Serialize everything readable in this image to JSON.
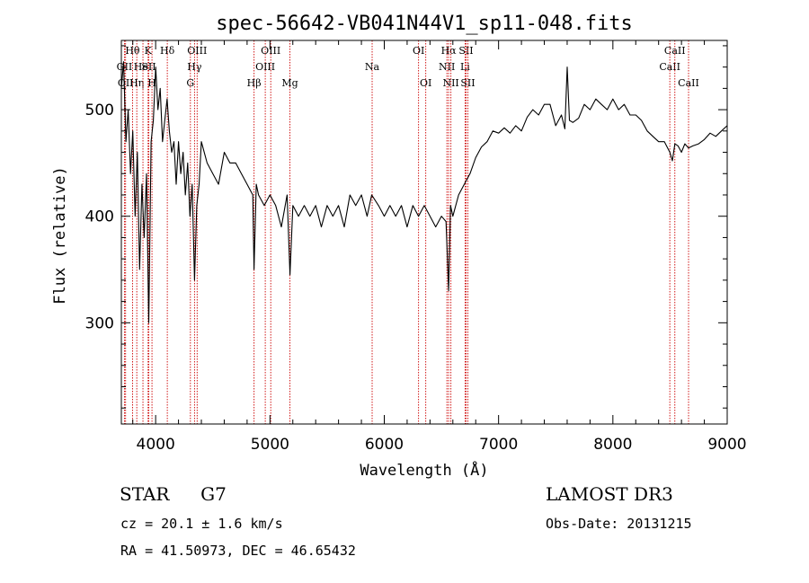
{
  "chart_data": {
    "type": "line",
    "title": "spec-56642-VB041N44V1_sp11-048.fits",
    "xlabel": "Wavelength (Å)",
    "ylabel": "Flux (relative)",
    "xlim": [
      3700,
      9000
    ],
    "ylim": [
      205,
      565
    ],
    "x_ticks": [
      4000,
      5000,
      6000,
      7000,
      8000,
      9000
    ],
    "y_ticks": [
      300,
      400,
      500
    ],
    "grid": false,
    "series": [
      {
        "name": "flux",
        "color": "#000000",
        "x": [
          3700,
          3720,
          3740,
          3760,
          3780,
          3800,
          3820,
          3840,
          3860,
          3880,
          3900,
          3920,
          3940,
          3960,
          3980,
          4000,
          4020,
          4040,
          4060,
          4080,
          4100,
          4120,
          4140,
          4160,
          4180,
          4200,
          4220,
          4240,
          4260,
          4280,
          4300,
          4320,
          4340,
          4360,
          4380,
          4400,
          4450,
          4500,
          4550,
          4600,
          4650,
          4700,
          4750,
          4800,
          4850,
          4861,
          4880,
          4900,
          4950,
          5000,
          5050,
          5100,
          5150,
          5175,
          5200,
          5250,
          5300,
          5350,
          5400,
          5450,
          5500,
          5550,
          5600,
          5650,
          5700,
          5750,
          5800,
          5850,
          5890,
          5950,
          6000,
          6050,
          6100,
          6150,
          6200,
          6250,
          6300,
          6350,
          6400,
          6450,
          6500,
          6540,
          6563,
          6580,
          6600,
          6650,
          6700,
          6750,
          6800,
          6850,
          6900,
          6950,
          7000,
          7050,
          7100,
          7150,
          7200,
          7250,
          7300,
          7350,
          7400,
          7450,
          7500,
          7550,
          7580,
          7600,
          7620,
          7650,
          7700,
          7750,
          7800,
          7850,
          7900,
          7950,
          8000,
          8050,
          8100,
          8150,
          8200,
          8250,
          8300,
          8350,
          8400,
          8450,
          8498,
          8520,
          8542,
          8570,
          8600,
          8630,
          8662,
          8700,
          8750,
          8800,
          8850,
          8900,
          8950,
          9000
        ],
        "values": [
          520,
          545,
          470,
          500,
          440,
          480,
          400,
          460,
          350,
          430,
          380,
          440,
          300,
          470,
          490,
          540,
          500,
          520,
          470,
          490,
          510,
          480,
          460,
          470,
          430,
          470,
          440,
          460,
          420,
          450,
          400,
          430,
          340,
          410,
          430,
          470,
          450,
          440,
          430,
          460,
          450,
          450,
          440,
          430,
          420,
          350,
          430,
          420,
          410,
          420,
          410,
          390,
          420,
          345,
          410,
          400,
          410,
          400,
          410,
          390,
          410,
          400,
          410,
          390,
          420,
          410,
          420,
          400,
          420,
          410,
          400,
          410,
          400,
          410,
          390,
          410,
          400,
          410,
          400,
          390,
          400,
          395,
          330,
          410,
          400,
          420,
          430,
          440,
          455,
          465,
          470,
          480,
          478,
          483,
          478,
          485,
          480,
          493,
          500,
          495,
          505,
          505,
          485,
          495,
          482,
          540,
          490,
          488,
          492,
          505,
          500,
          510,
          505,
          500,
          510,
          500,
          505,
          495,
          495,
          490,
          480,
          475,
          470,
          470,
          460,
          452,
          468,
          466,
          460,
          468,
          464,
          466,
          468,
          472,
          478,
          475,
          480,
          485
        ]
      }
    ],
    "spectral_lines": [
      {
        "label": "OII",
        "wavelength": 3727,
        "row": 2
      },
      {
        "label": "OII",
        "wavelength": 3737,
        "row": 3
      },
      {
        "label": "Hθ",
        "wavelength": 3798,
        "row": 1
      },
      {
        "label": "Hη",
        "wavelength": 3835,
        "row": 3
      },
      {
        "label": "HeI",
        "wavelength": 3889,
        "row": 2
      },
      {
        "label": "K",
        "wavelength": 3934,
        "row": 1
      },
      {
        "label": "SII",
        "wavelength": 3940,
        "row": 2
      },
      {
        "label": "H",
        "wavelength": 3968,
        "row": 3
      },
      {
        "label": "Hδ",
        "wavelength": 4102,
        "row": 1
      },
      {
        "label": "G",
        "wavelength": 4304,
        "row": 3
      },
      {
        "label": "Hγ",
        "wavelength": 4340,
        "row": 2
      },
      {
        "label": "OIII",
        "wavelength": 4363,
        "row": 1
      },
      {
        "label": "Hβ",
        "wavelength": 4861,
        "row": 3
      },
      {
        "label": "OIII",
        "wavelength": 4959,
        "row": 2
      },
      {
        "label": "OIII",
        "wavelength": 5007,
        "row": 1
      },
      {
        "label": "Mg",
        "wavelength": 5175,
        "row": 3
      },
      {
        "label": "Na",
        "wavelength": 5894,
        "row": 2
      },
      {
        "label": "OI",
        "wavelength": 6300,
        "row": 1
      },
      {
        "label": "OI",
        "wavelength": 6363,
        "row": 3
      },
      {
        "label": "NII",
        "wavelength": 6548,
        "row": 2
      },
      {
        "label": "Hα",
        "wavelength": 6563,
        "row": 1
      },
      {
        "label": "NII",
        "wavelength": 6583,
        "row": 3
      },
      {
        "label": "Li",
        "wavelength": 6707,
        "row": 2
      },
      {
        "label": "SII",
        "wavelength": 6716,
        "row": 1
      },
      {
        "label": "SII",
        "wavelength": 6731,
        "row": 3
      },
      {
        "label": "CaII",
        "wavelength": 8498,
        "row": 2
      },
      {
        "label": "CaII",
        "wavelength": 8542,
        "row": 1
      },
      {
        "label": "CaII",
        "wavelength": 8662,
        "row": 3
      }
    ]
  },
  "info": {
    "object_class": "STAR",
    "subclass": "G7",
    "survey": "LAMOST DR3",
    "redshift": "cz = 20.1 ± 1.6 km/s",
    "obs_date": "Obs-Date: 20131215",
    "coordinates": "RA =  41.50973, DEC =  46.65432"
  },
  "colors": {
    "spectrum": "#000000",
    "line_marker": "#cc0000",
    "axes": "#000000"
  }
}
